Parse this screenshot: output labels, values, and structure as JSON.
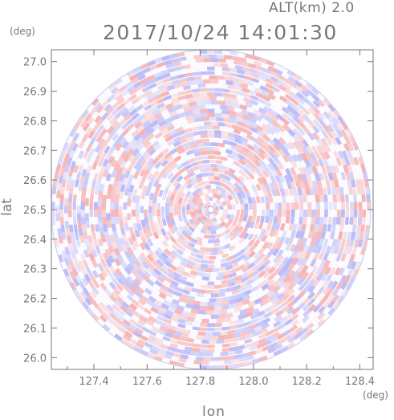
{
  "header": {
    "alt_text": "ALT(km) 2.0",
    "timestamp": "2017/10/24 14:01:30"
  },
  "chart_data": {
    "type": "heatmap",
    "description_fields": {
      "quantity": "",
      "scan": "circular radar PPI scan"
    },
    "timestamp": "2017/10/24 14:01:30",
    "altitude_label": "ALT(km) 2.0",
    "xlabel": "lon",
    "ylabel": "lat",
    "x_unit": "(deg)",
    "y_unit": "(deg)",
    "xlim": [
      127.24,
      128.45
    ],
    "ylim": [
      25.96,
      27.04
    ],
    "x_ticks": [
      "127.4",
      "127.6",
      "127.8",
      "128.0",
      "128.2",
      "128.4"
    ],
    "y_ticks": [
      "26.0",
      "26.1",
      "26.2",
      "26.3",
      "26.4",
      "26.5",
      "26.6",
      "26.7",
      "26.8",
      "26.9",
      "27.0"
    ],
    "center": {
      "lon": 127.84,
      "lat": 26.5
    },
    "radius_deg_lat": 0.54,
    "colors": {
      "positive": "#f5a0a0",
      "negative": "#a8a8f5",
      "frame": "#777777"
    },
    "grid": false,
    "legend": "none"
  }
}
